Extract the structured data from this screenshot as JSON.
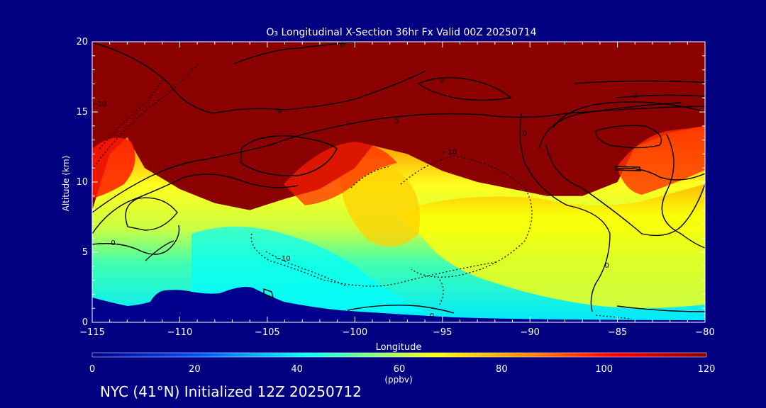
{
  "chart_data": {
    "type": "heatmap",
    "title": "O₃ Longitudinal X-Section 36hr  Fx Valid 00Z 20250714",
    "xlabel": "Longitude",
    "ylabel": "Altitude (km)",
    "xlim": [
      -115,
      -80
    ],
    "ylim": [
      0,
      20
    ],
    "x_ticks": [
      "−115",
      "−110",
      "−105",
      "−100",
      "−95",
      "−90",
      "−85",
      "−80"
    ],
    "x_tick_values": [
      -115,
      -110,
      -105,
      -100,
      -95,
      -90,
      -85,
      -80
    ],
    "y_ticks": [
      "0",
      "5",
      "10",
      "15",
      "20"
    ],
    "y_tick_values": [
      0,
      5,
      10,
      15,
      20
    ],
    "colorbar": {
      "label": "(ppbv)",
      "range": [
        0,
        120
      ],
      "ticks": [
        "0",
        "20",
        "40",
        "60",
        "80",
        "100",
        "120"
      ],
      "tick_values": [
        0,
        20,
        40,
        60,
        80,
        100,
        120
      ],
      "colors": [
        "#00008c",
        "#0050ff",
        "#00ffff",
        "#ffff00",
        "#ff8000",
        "#ff0000",
        "#8b0000"
      ]
    },
    "tropopause_height_km": [
      [
        -115,
        8.0
      ],
      [
        -114,
        12.0
      ],
      [
        -113,
        13.2
      ],
      [
        -112,
        11.0
      ],
      [
        -110,
        9.5
      ],
      [
        -108,
        8.5
      ],
      [
        -106,
        8.0
      ],
      [
        -104,
        8.8
      ],
      [
        -102,
        9.5
      ],
      [
        -100,
        11.0
      ],
      [
        -99,
        12.6
      ],
      [
        -97,
        12.0
      ],
      [
        -95,
        10.8
      ],
      [
        -93,
        10.0
      ],
      [
        -91,
        9.5
      ],
      [
        -89,
        9.0
      ],
      [
        -87,
        9.0
      ],
      [
        -85,
        10.0
      ],
      [
        -84,
        12.5
      ],
      [
        -82,
        13.5
      ],
      [
        -80,
        14.0
      ]
    ],
    "contour_labels": [
      {
        "text": "0",
        "lon": -113.8,
        "alt": 5.7
      },
      {
        "text": "0",
        "lon": -104.3,
        "alt": 15.1
      },
      {
        "text": "0",
        "lon": -97.6,
        "alt": 14.4
      },
      {
        "text": "0",
        "lon": -95.0,
        "alt": 17.3
      },
      {
        "text": "0",
        "lon": -90.3,
        "alt": 13.5
      },
      {
        "text": "0",
        "lon": -84.0,
        "alt": 16.2
      },
      {
        "text": "0",
        "lon": -100.7,
        "alt": 19.8
      },
      {
        "text": "0",
        "lon": -95.6,
        "alt": 0.5
      },
      {
        "text": "0",
        "lon": -85.6,
        "alt": 4.1
      },
      {
        "text": "−10",
        "lon": -94.6,
        "alt": 12.2
      },
      {
        "text": "−10",
        "lon": -104.1,
        "alt": 4.6
      },
      {
        "text": "−10",
        "lon": -114.6,
        "alt": 15.6
      }
    ],
    "grid": false
  },
  "footer": {
    "text": "NYC (41°N) Initialized 12Z 20250712"
  }
}
